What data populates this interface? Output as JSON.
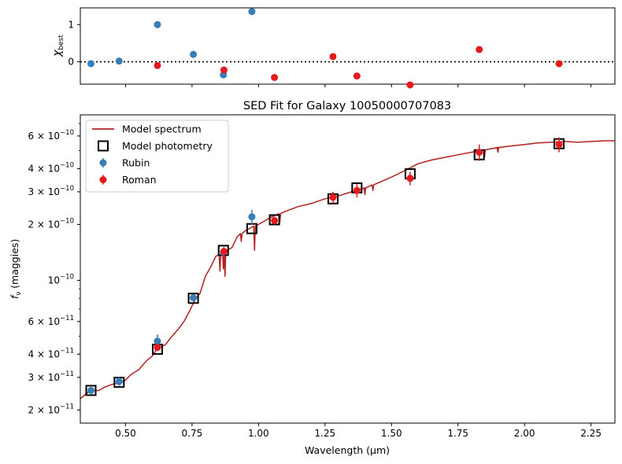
{
  "chart_data": [
    {
      "type": "scatter",
      "panel": "residuals",
      "ylabel_main": "χ",
      "ylabel_sub": "best",
      "xlim": [
        0.33,
        2.34
      ],
      "ylim": [
        -0.6,
        1.45
      ],
      "yticks": [
        {
          "value": 0,
          "label": "0"
        },
        {
          "value": 1,
          "label": "1"
        }
      ],
      "zero_line": true,
      "series": [
        {
          "name": "Rubin",
          "color": "#377eb8",
          "x": [
            0.37,
            0.476,
            0.62,
            0.755,
            0.868,
            0.975
          ],
          "y": [
            -0.05,
            0.02,
            1.0,
            0.2,
            -0.35,
            1.35
          ]
        },
        {
          "name": "Roman",
          "color": "#e41a1c",
          "x": [
            0.62,
            0.87,
            1.06,
            1.28,
            1.37,
            1.57,
            1.83,
            2.13
          ],
          "y": [
            -0.1,
            -0.22,
            -0.42,
            0.14,
            -0.38,
            -0.62,
            0.33,
            -0.05
          ]
        }
      ]
    },
    {
      "type": "line",
      "panel": "sed",
      "title": "SED Fit for Galaxy 10050000707083",
      "xlabel": "Wavelength (μm)",
      "ylabel": "f_ν (maggies)",
      "ylabel_base": "f",
      "ylabel_sub": "ν",
      "ylabel_unit": " (maggies)",
      "yscale": "log",
      "xlim": [
        0.33,
        2.34
      ],
      "ylim": [
        1.7e-11,
        7.8e-10
      ],
      "xticks": [
        {
          "value": 0.5,
          "label": "0.50"
        },
        {
          "value": 0.75,
          "label": "0.75"
        },
        {
          "value": 1.0,
          "label": "1.00"
        },
        {
          "value": 1.25,
          "label": "1.25"
        },
        {
          "value": 1.5,
          "label": "1.50"
        },
        {
          "value": 1.75,
          "label": "1.75"
        },
        {
          "value": 2.0,
          "label": "2.00"
        },
        {
          "value": 2.25,
          "label": "2.25"
        }
      ],
      "yticks": [
        {
          "value": 2e-11,
          "mant": "2",
          "exp": "−11"
        },
        {
          "value": 3e-11,
          "mant": "3",
          "exp": "−11"
        },
        {
          "value": 4e-11,
          "mant": "4",
          "exp": "−11"
        },
        {
          "value": 6e-11,
          "mant": "6",
          "exp": "−11"
        },
        {
          "value": 1e-10,
          "mant": "",
          "exp": "−10"
        },
        {
          "value": 2e-10,
          "mant": "2",
          "exp": "−10"
        },
        {
          "value": 3e-10,
          "mant": "3",
          "exp": "−10"
        },
        {
          "value": 4e-10,
          "mant": "4",
          "exp": "−10"
        },
        {
          "value": 6e-10,
          "mant": "6",
          "exp": "−10"
        }
      ],
      "legend_position": "upper-left",
      "legend": [
        {
          "label": "Model spectrum",
          "kind": "line",
          "color": "#b22222"
        },
        {
          "label": "Model photometry",
          "kind": "square",
          "color": "#000000"
        },
        {
          "label": "Rubin",
          "kind": "errpoint",
          "color": "#377eb8"
        },
        {
          "label": "Roman",
          "kind": "errpoint",
          "color": "#e41a1c"
        }
      ],
      "model_spectrum": {
        "color": "#b22222",
        "x": [
          0.33,
          0.36,
          0.38,
          0.4,
          0.42,
          0.45,
          0.48,
          0.5,
          0.52,
          0.55,
          0.58,
          0.6,
          0.62,
          0.65,
          0.67,
          0.7,
          0.72,
          0.74,
          0.76,
          0.78,
          0.8,
          0.82,
          0.84,
          0.86,
          0.88,
          0.9,
          0.92,
          0.95,
          0.98,
          1.0,
          1.05,
          1.1,
          1.15,
          1.2,
          1.25,
          1.3,
          1.35,
          1.4,
          1.45,
          1.5,
          1.55,
          1.6,
          1.65,
          1.7,
          1.75,
          1.8,
          1.85,
          1.9,
          1.95,
          2.0,
          2.05,
          2.1,
          2.15,
          2.2,
          2.25,
          2.3,
          2.34
        ],
        "y": [
          2.3e-11,
          2.5e-11,
          2.55e-11,
          2.55e-11,
          2.65e-11,
          2.75e-11,
          2.8e-11,
          2.9e-11,
          3.1e-11,
          3.3e-11,
          3.7e-11,
          3.9e-11,
          4.3e-11,
          4.5e-11,
          4.9e-11,
          5.5e-11,
          6e-11,
          6.8e-11,
          7.8e-11,
          8.5e-11,
          1.05e-10,
          1.18e-10,
          1.35e-10,
          1.38e-10,
          1.45e-10,
          1.5e-10,
          1.72e-10,
          1.85e-10,
          1.95e-10,
          2e-10,
          2.2e-10,
          2.35e-10,
          2.5e-10,
          2.6e-10,
          2.75e-10,
          2.85e-10,
          3e-10,
          3.15e-10,
          3.35e-10,
          3.6e-10,
          3.9e-10,
          4.25e-10,
          4.45e-10,
          4.6e-10,
          4.75e-10,
          4.9e-10,
          5.05e-10,
          5.2e-10,
          5.3e-10,
          5.4e-10,
          5.5e-10,
          5.55e-10,
          5.6e-10,
          5.55e-10,
          5.6e-10,
          5.65e-10,
          5.65e-10
        ],
        "dips": [
          {
            "x": 0.855,
            "y": 1.12e-10
          },
          {
            "x": 0.868,
            "y": 1.15e-10
          },
          {
            "x": 0.874,
            "y": 1.05e-10
          },
          {
            "x": 0.935,
            "y": 1.62e-10
          },
          {
            "x": 0.985,
            "y": 1.45e-10
          },
          {
            "x": 1.08,
            "y": 2.05e-10
          },
          {
            "x": 1.4,
            "y": 2.9e-10
          },
          {
            "x": 1.43,
            "y": 3.05e-10
          },
          {
            "x": 1.85,
            "y": 4.65e-10
          },
          {
            "x": 1.9,
            "y": 4.9e-10
          }
        ]
      },
      "model_photometry": {
        "x": [
          0.37,
          0.476,
          0.62,
          0.755,
          0.868,
          0.975,
          1.06,
          1.28,
          1.37,
          1.57,
          1.83,
          2.13
        ],
        "y": [
          2.55e-11,
          2.82e-11,
          4.25e-11,
          8e-11,
          1.45e-10,
          1.9e-10,
          2.12e-10,
          2.75e-10,
          3.15e-10,
          3.75e-10,
          4.75e-10,
          5.45e-10
        ]
      },
      "series": [
        {
          "name": "Rubin",
          "color": "#377eb8",
          "x": [
            0.37,
            0.476,
            0.62,
            0.755,
            0.868,
            0.975
          ],
          "y": [
            2.55e-11,
            2.85e-11,
            4.7e-11,
            8.05e-11,
            1.42e-10,
            2.2e-10
          ],
          "err": [
            1e-12,
            1.5e-12,
            4e-12,
            3e-12,
            8e-12,
            2e-11
          ]
        },
        {
          "name": "Roman",
          "color": "#e41a1c",
          "x": [
            0.62,
            0.87,
            1.06,
            1.28,
            1.37,
            1.57,
            1.83,
            2.13
          ],
          "y": [
            4.35e-11,
            1.43e-10,
            2.1e-10,
            2.8e-10,
            3.05e-10,
            3.55e-10,
            4.9e-10,
            5.4e-10
          ],
          "err": [
            2e-12,
            8e-12,
            1e-11,
            2e-11,
            2.5e-11,
            3e-11,
            5e-11,
            5e-11
          ]
        }
      ]
    }
  ]
}
